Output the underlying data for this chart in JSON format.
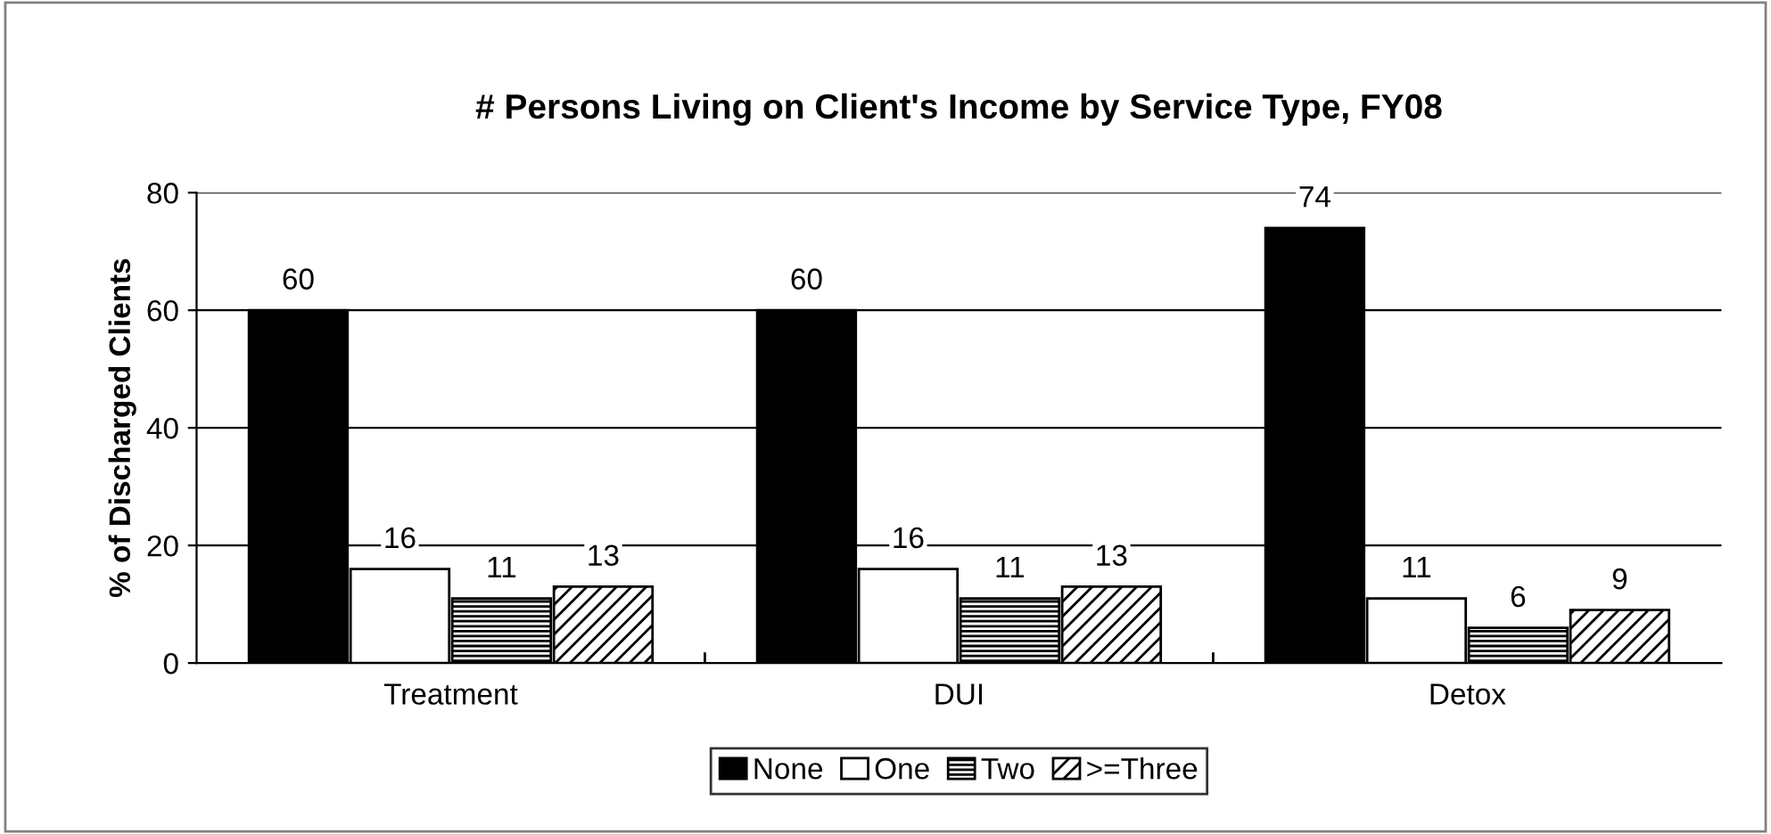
{
  "chart_data": {
    "type": "bar",
    "title": "# Persons Living on Client's Income by Service Type, FY08",
    "ylabel": "% of Discharged Clients",
    "categories": [
      "Treatment",
      "DUI",
      "Detox"
    ],
    "series": [
      {
        "name": "None",
        "color": "#000000",
        "values": [
          60,
          60,
          74
        ]
      },
      {
        "name": "One",
        "color": "#ffffff",
        "values": [
          16,
          16,
          11
        ]
      },
      {
        "name": "Two",
        "color": "#000000",
        "values": [
          11,
          11,
          6
        ]
      },
      {
        "name": ">=Three",
        "color": "#000000",
        "values": [
          13,
          13,
          9
        ]
      }
    ],
    "ylim": [
      0,
      80
    ],
    "yticks": [
      0,
      20,
      40,
      60,
      80
    ],
    "grid": "y",
    "legend": "bottom",
    "data_labels": true
  }
}
